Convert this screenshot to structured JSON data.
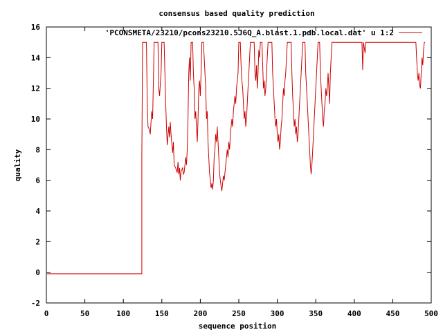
{
  "chart_data": {
    "type": "line",
    "title": "consensus based quality prediction",
    "xlabel": "sequence position",
    "ylabel": "quality",
    "xlim": [
      0,
      500
    ],
    "ylim": [
      -2,
      16
    ],
    "xticks": [
      0,
      50,
      100,
      150,
      200,
      250,
      300,
      350,
      400,
      450,
      500
    ],
    "yticks": [
      -2,
      0,
      2,
      4,
      6,
      8,
      10,
      12,
      14,
      16
    ],
    "legend_position": "top-right",
    "grid": false,
    "series": [
      {
        "name": "'PCONSMETA/23210/pcons23210.5J6Q_A.blast.1.pdb.local.dat' u 1:2",
        "color": "#cc0000",
        "points": [
          [
            1,
            -0.1
          ],
          [
            124,
            -0.1
          ],
          [
            124,
            7.5
          ],
          [
            125,
            15
          ],
          [
            130,
            15
          ],
          [
            131,
            11
          ],
          [
            132,
            9.5
          ],
          [
            134,
            9.3
          ],
          [
            135,
            9
          ],
          [
            136,
            9.8
          ],
          [
            137,
            10.5
          ],
          [
            138,
            10
          ],
          [
            140,
            15
          ],
          [
            145,
            15
          ],
          [
            146,
            12
          ],
          [
            147,
            11.5
          ],
          [
            149,
            13
          ],
          [
            150,
            15
          ],
          [
            153,
            15
          ],
          [
            155,
            11
          ],
          [
            156,
            9.5
          ],
          [
            157,
            8.3
          ],
          [
            159,
            9.5
          ],
          [
            160,
            8.8
          ],
          [
            161,
            9.8
          ],
          [
            162,
            9
          ],
          [
            164,
            7.8
          ],
          [
            165,
            8.5
          ],
          [
            166,
            7
          ],
          [
            168,
            6.8
          ],
          [
            170,
            6.5
          ],
          [
            171,
            7.2
          ],
          [
            172,
            6.4
          ],
          [
            173,
            6.8
          ],
          [
            174,
            6
          ],
          [
            175,
            6.6
          ],
          [
            176,
            6.7
          ],
          [
            177,
            6.8
          ],
          [
            178,
            6.4
          ],
          [
            179,
            6.5
          ],
          [
            180,
            7
          ],
          [
            181,
            7.5
          ],
          [
            182,
            7
          ],
          [
            183,
            8
          ],
          [
            184,
            10
          ],
          [
            185,
            13
          ],
          [
            186,
            14
          ],
          [
            187,
            12.5
          ],
          [
            188,
            15
          ],
          [
            190,
            15
          ],
          [
            191,
            13
          ],
          [
            192,
            12
          ],
          [
            193,
            10
          ],
          [
            194,
            10.5
          ],
          [
            195,
            9.5
          ],
          [
            196,
            8.5
          ],
          [
            197,
            10
          ],
          [
            198,
            12
          ],
          [
            199,
            12.5
          ],
          [
            200,
            11.5
          ],
          [
            201,
            13
          ],
          [
            202,
            15
          ],
          [
            204,
            15
          ],
          [
            205,
            14
          ],
          [
            206,
            13
          ],
          [
            207,
            12
          ],
          [
            208,
            10
          ],
          [
            209,
            10.5
          ],
          [
            210,
            8.5
          ],
          [
            211,
            7.5
          ],
          [
            212,
            6.5
          ],
          [
            213,
            6
          ],
          [
            214,
            5.5
          ],
          [
            215,
            5.8
          ],
          [
            216,
            5.4
          ],
          [
            217,
            6
          ],
          [
            218,
            7.5
          ],
          [
            219,
            8
          ],
          [
            220,
            9
          ],
          [
            221,
            8.5
          ],
          [
            222,
            9.5
          ],
          [
            223,
            8.5
          ],
          [
            224,
            7.5
          ],
          [
            225,
            6.5
          ],
          [
            226,
            6
          ],
          [
            227,
            5.6
          ],
          [
            228,
            5.3
          ],
          [
            229,
            5.8
          ],
          [
            230,
            6.3
          ],
          [
            231,
            6
          ],
          [
            232,
            6.5
          ],
          [
            233,
            7
          ],
          [
            234,
            7.5
          ],
          [
            235,
            8
          ],
          [
            236,
            7.5
          ],
          [
            237,
            8.5
          ],
          [
            238,
            8
          ],
          [
            239,
            9
          ],
          [
            240,
            9.5
          ],
          [
            241,
            10
          ],
          [
            242,
            9.5
          ],
          [
            243,
            10.5
          ],
          [
            244,
            11
          ],
          [
            245,
            11.5
          ],
          [
            246,
            11
          ],
          [
            247,
            12
          ],
          [
            248,
            12.5
          ],
          [
            249,
            13
          ],
          [
            250,
            15
          ],
          [
            252,
            15
          ],
          [
            253,
            13.5
          ],
          [
            254,
            12.5
          ],
          [
            255,
            12
          ],
          [
            256,
            11
          ],
          [
            257,
            10
          ],
          [
            258,
            10.5
          ],
          [
            259,
            9.5
          ],
          [
            260,
            10
          ],
          [
            261,
            11
          ],
          [
            262,
            12
          ],
          [
            263,
            13
          ],
          [
            264,
            14
          ],
          [
            265,
            15
          ],
          [
            270,
            15
          ],
          [
            271,
            13
          ],
          [
            272,
            12.5
          ],
          [
            273,
            13.5
          ],
          [
            274,
            12
          ],
          [
            275,
            13
          ],
          [
            276,
            14.5
          ],
          [
            277,
            14
          ],
          [
            278,
            15
          ],
          [
            280,
            15
          ],
          [
            281,
            13.5
          ],
          [
            282,
            12
          ],
          [
            283,
            12.5
          ],
          [
            284,
            11.5
          ],
          [
            285,
            12
          ],
          [
            286,
            13
          ],
          [
            287,
            14
          ],
          [
            288,
            15
          ],
          [
            293,
            15
          ],
          [
            294,
            13
          ],
          [
            295,
            12
          ],
          [
            296,
            11
          ],
          [
            297,
            10
          ],
          [
            298,
            9.5
          ],
          [
            299,
            10
          ],
          [
            300,
            9
          ],
          [
            301,
            8.5
          ],
          [
            302,
            9
          ],
          [
            303,
            8
          ],
          [
            304,
            8.5
          ],
          [
            305,
            9.5
          ],
          [
            306,
            10
          ],
          [
            307,
            11
          ],
          [
            308,
            12
          ],
          [
            309,
            11.5
          ],
          [
            310,
            12.5
          ],
          [
            311,
            13
          ],
          [
            312,
            14
          ],
          [
            313,
            15
          ],
          [
            318,
            15
          ],
          [
            319,
            13
          ],
          [
            320,
            11.5
          ],
          [
            321,
            10.5
          ],
          [
            322,
            9.5
          ],
          [
            323,
            10
          ],
          [
            324,
            9
          ],
          [
            325,
            9.5
          ],
          [
            326,
            8.5
          ],
          [
            327,
            9
          ],
          [
            328,
            10
          ],
          [
            329,
            11
          ],
          [
            330,
            12
          ],
          [
            331,
            13
          ],
          [
            332,
            14
          ],
          [
            333,
            15
          ],
          [
            336,
            15
          ],
          [
            337,
            13
          ],
          [
            338,
            12
          ],
          [
            339,
            11
          ],
          [
            340,
            10
          ],
          [
            341,
            9
          ],
          [
            342,
            8
          ],
          [
            343,
            7
          ],
          [
            344,
            6.4
          ],
          [
            345,
            7
          ],
          [
            346,
            8
          ],
          [
            347,
            9
          ],
          [
            348,
            10
          ],
          [
            349,
            11
          ],
          [
            350,
            12
          ],
          [
            351,
            13
          ],
          [
            352,
            14
          ],
          [
            353,
            15
          ],
          [
            355,
            15
          ],
          [
            356,
            13
          ],
          [
            357,
            12
          ],
          [
            358,
            11
          ],
          [
            359,
            10
          ],
          [
            360,
            9.5
          ],
          [
            361,
            10.5
          ],
          [
            362,
            11
          ],
          [
            363,
            12
          ],
          [
            364,
            11.5
          ],
          [
            365,
            12
          ],
          [
            366,
            13
          ],
          [
            367,
            12
          ],
          [
            368,
            11
          ],
          [
            369,
            13
          ],
          [
            370,
            14
          ],
          [
            371,
            15
          ],
          [
            410,
            15
          ],
          [
            411,
            13.2
          ],
          [
            412,
            15
          ],
          [
            414,
            14.3
          ],
          [
            415,
            15
          ],
          [
            480,
            15
          ],
          [
            481,
            14
          ],
          [
            482,
            13
          ],
          [
            483,
            12.5
          ],
          [
            484,
            13
          ],
          [
            485,
            12.2
          ],
          [
            486,
            12
          ],
          [
            487,
            13
          ],
          [
            488,
            14
          ],
          [
            489,
            13.5
          ],
          [
            490,
            14.5
          ],
          [
            491,
            15
          ],
          [
            492,
            15
          ]
        ]
      }
    ]
  }
}
